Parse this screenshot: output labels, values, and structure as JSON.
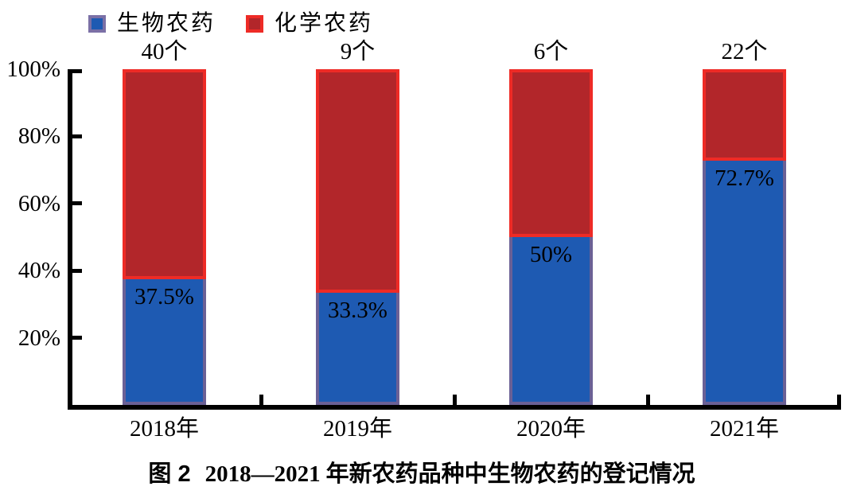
{
  "chart_data": {
    "type": "bar",
    "subtype": "stacked-percent-column",
    "categories": [
      "2018年",
      "2019年",
      "2020年",
      "2021年"
    ],
    "series": [
      {
        "name": "生物农药",
        "values": [
          37.5,
          33.3,
          50,
          72.7
        ],
        "fill": "#1E5AB2",
        "border": "#6B6196",
        "legend_border": "#7B70A6"
      },
      {
        "name": "化学农药",
        "values": [
          62.5,
          66.7,
          50,
          27.3
        ],
        "fill": "#B2262A",
        "border": "#EE2B26",
        "legend_border": "#EE2B26"
      }
    ],
    "bar_value_labels": [
      "37.5%",
      "33.3%",
      "50%",
      "72.7%"
    ],
    "bar_total_labels": [
      "40个",
      "9个",
      "6个",
      "22个"
    ],
    "y_ticks": [
      "100%",
      "80%",
      "60%",
      "40%",
      "20%"
    ],
    "ylim": [
      0,
      100
    ],
    "grid": "off",
    "legend_position": "top-left",
    "axis_color": "#000000",
    "title": "图 2 2018—2021 年新农药品种中生物农药的登记情况"
  },
  "caption": {
    "fig": "图 2",
    "years": "2018—2021",
    "text": "年新农药品种中生物农药的登记情况"
  }
}
